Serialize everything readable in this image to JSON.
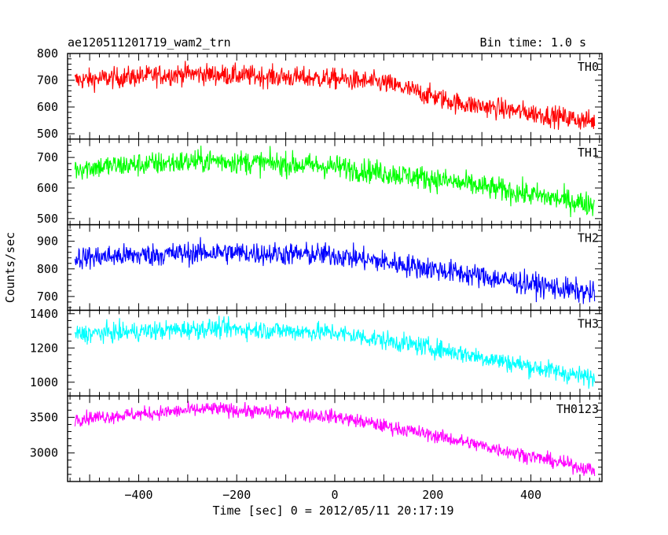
{
  "chart_data": {
    "type": "line",
    "title": "ae120511201719_wam2_trn",
    "subtitle": "Bin time: 1.0 s",
    "xlabel": "Time [sec] 0 = 2012/05/11 20:17:19",
    "ylabel": "Counts/sec",
    "xlim": [
      -545,
      545
    ],
    "xticks": [
      -400,
      -200,
      0,
      200,
      400
    ],
    "xtick_labels": [
      "−400",
      "−200",
      "0",
      "200",
      "400"
    ],
    "x_start": -530,
    "x_end": 530,
    "x_step": 1,
    "panels": [
      {
        "name": "TH0",
        "color": "#ff0000",
        "ylim": [
          480,
          800
        ],
        "yticks": [
          500,
          600,
          700,
          800
        ],
        "trend": [
          [
            -530,
            700
          ],
          [
            -300,
            725
          ],
          [
            0,
            705
          ],
          [
            100,
            690
          ],
          [
            250,
            615
          ],
          [
            530,
            545
          ]
        ],
        "noise": 28
      },
      {
        "name": "TH1",
        "color": "#00ff00",
        "ylim": [
          480,
          760
        ],
        "yticks": [
          500,
          600,
          700
        ],
        "trend": [
          [
            -530,
            665
          ],
          [
            -250,
            690
          ],
          [
            0,
            670
          ],
          [
            200,
            630
          ],
          [
            530,
            545
          ]
        ],
        "noise": 28
      },
      {
        "name": "TH2",
        "color": "#0000ff",
        "ylim": [
          650,
          960
        ],
        "yticks": [
          700,
          800,
          900
        ],
        "trend": [
          [
            -530,
            840
          ],
          [
            -250,
            860
          ],
          [
            0,
            850
          ],
          [
            200,
            800
          ],
          [
            530,
            710
          ]
        ],
        "noise": 30
      },
      {
        "name": "TH3",
        "color": "#00ffff",
        "ylim": [
          920,
          1420
        ],
        "yticks": [
          1000,
          1200,
          1400
        ],
        "trend": [
          [
            -530,
            1280
          ],
          [
            -250,
            1315
          ],
          [
            0,
            1290
          ],
          [
            200,
            1200
          ],
          [
            530,
            1020
          ]
        ],
        "noise": 40
      },
      {
        "name": "TH0123",
        "color": "#ff00ff",
        "ylim": [
          2600,
          3800
        ],
        "yticks": [
          3000,
          3500
        ],
        "trend": [
          [
            -530,
            3480
          ],
          [
            -250,
            3620
          ],
          [
            0,
            3510
          ],
          [
            200,
            3250
          ],
          [
            530,
            2760
          ]
        ],
        "noise": 70
      }
    ]
  }
}
